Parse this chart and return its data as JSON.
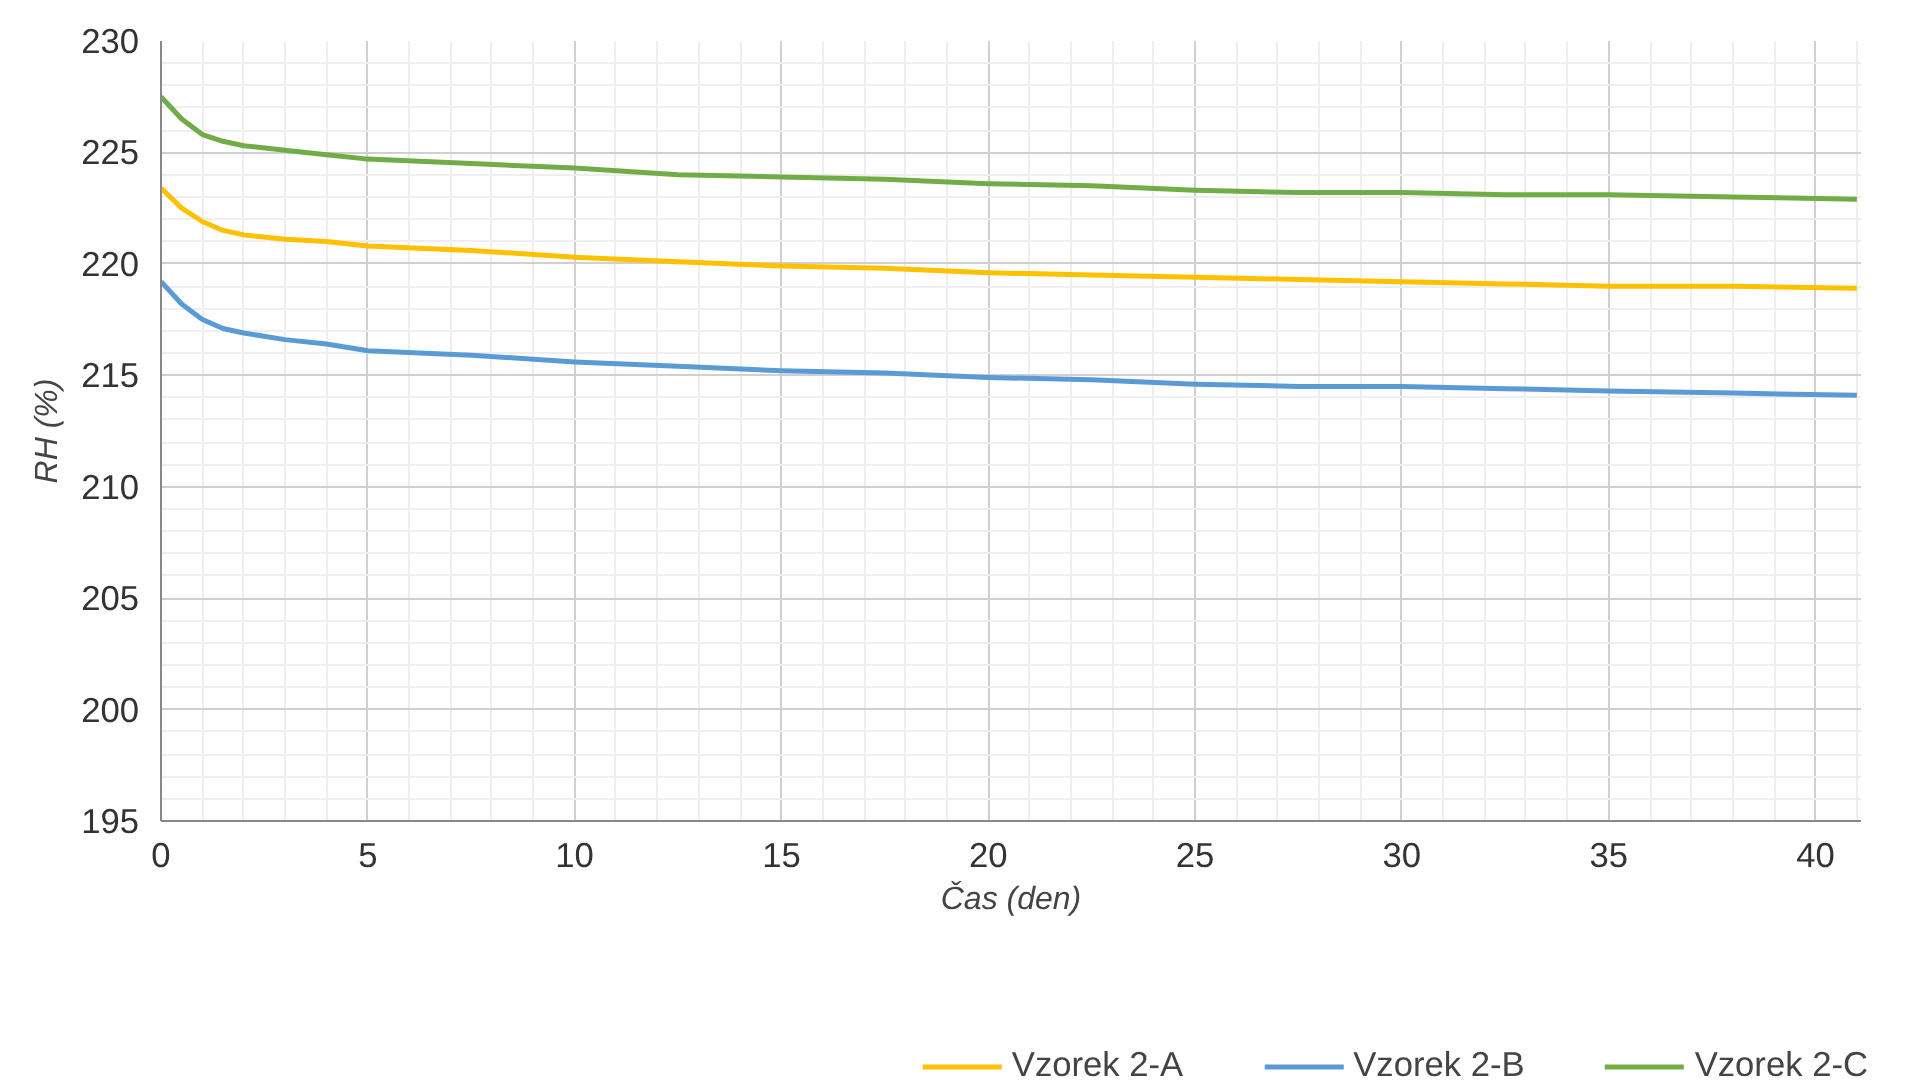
{
  "chart_data": {
    "type": "line",
    "xlabel": "Čas (den)",
    "ylabel": "RH (%)",
    "xlim": [
      0,
      41.1
    ],
    "ylim": [
      195,
      230
    ],
    "xticks": [
      0,
      5,
      10,
      15,
      20,
      25,
      30,
      35,
      40
    ],
    "yticks": [
      195,
      200,
      205,
      210,
      215,
      220,
      225,
      230
    ],
    "grid": true,
    "legend": "bottom",
    "marker": "none",
    "line_style": "solid",
    "x": [
      0,
      0.5,
      1,
      1.5,
      2,
      3,
      4,
      5,
      7.5,
      10,
      12.5,
      15,
      17.5,
      20,
      22.5,
      25,
      27.5,
      30,
      32.5,
      35,
      38,
      41
    ],
    "series": [
      {
        "name": "Vzorek 2-A",
        "color": "#ffc000",
        "values": [
          223.4,
          222.5,
          221.9,
          221.5,
          221.3,
          221.1,
          221.0,
          220.8,
          220.6,
          220.3,
          220.1,
          219.9,
          219.8,
          219.6,
          219.5,
          219.4,
          219.3,
          219.2,
          219.1,
          219.0,
          219.0,
          218.9
        ]
      },
      {
        "name": "Vzorek 2-B",
        "color": "#5b9bd5",
        "values": [
          219.2,
          218.2,
          217.5,
          217.1,
          216.9,
          216.6,
          216.4,
          216.1,
          215.9,
          215.6,
          215.4,
          215.2,
          215.1,
          214.9,
          214.8,
          214.6,
          214.5,
          214.5,
          214.4,
          214.3,
          214.2,
          214.1
        ]
      },
      {
        "name": "Vzorek 2-C",
        "color": "#70ad47",
        "values": [
          227.5,
          226.5,
          225.8,
          225.5,
          225.3,
          225.1,
          224.9,
          224.7,
          224.5,
          224.3,
          224.0,
          223.9,
          223.8,
          223.6,
          223.5,
          223.3,
          223.2,
          223.2,
          223.1,
          223.1,
          223.0,
          222.9
        ]
      }
    ]
  }
}
